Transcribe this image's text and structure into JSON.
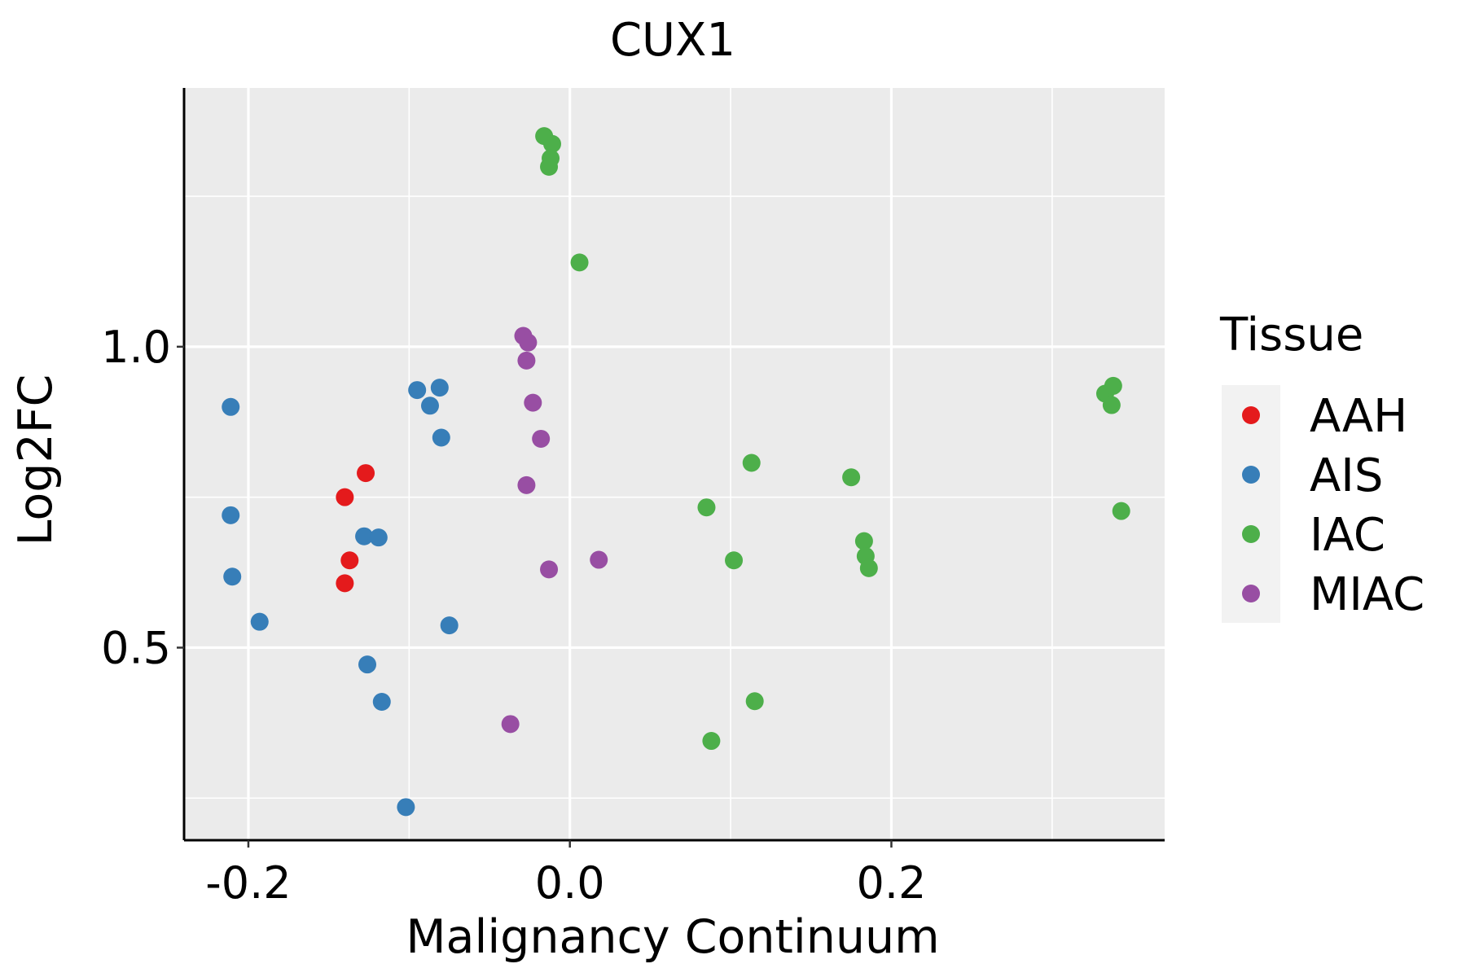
{
  "chart_data": {
    "type": "scatter",
    "title": "CUX1",
    "xlabel": "Malignancy Continuum",
    "ylabel": "Log2FC",
    "xlim": [
      -0.24,
      0.37
    ],
    "ylim": [
      0.18,
      1.43
    ],
    "x_ticks": [
      -0.2,
      0.0,
      0.2
    ],
    "x_tick_labels": [
      "-0.2",
      "0.0",
      "0.2"
    ],
    "y_ticks": [
      0.5,
      1.0
    ],
    "y_tick_labels": [
      "0.5",
      "1.0"
    ],
    "x_minor_grid": [
      -0.1,
      0.1,
      0.3
    ],
    "y_minor_grid": [
      0.25,
      0.75,
      1.25
    ],
    "grid": true,
    "panel_background": "#EBEBEB",
    "legend": {
      "title": "Tissue",
      "position": "right",
      "entries": [
        {
          "label": "AAH",
          "color": "#E41A1C"
        },
        {
          "label": "AIS",
          "color": "#377EB8"
        },
        {
          "label": "IAC",
          "color": "#4DAF4A"
        },
        {
          "label": "MIAC",
          "color": "#984EA3"
        }
      ]
    },
    "series": [
      {
        "name": "AAH",
        "color": "#E41A1C",
        "points": [
          {
            "x": -0.127,
            "y": 0.79
          },
          {
            "x": -0.14,
            "y": 0.75
          },
          {
            "x": -0.137,
            "y": 0.645
          },
          {
            "x": -0.14,
            "y": 0.607
          }
        ]
      },
      {
        "name": "AIS",
        "color": "#377EB8",
        "points": [
          {
            "x": -0.211,
            "y": 0.9
          },
          {
            "x": -0.211,
            "y": 0.72
          },
          {
            "x": -0.21,
            "y": 0.618
          },
          {
            "x": -0.193,
            "y": 0.543
          },
          {
            "x": -0.128,
            "y": 0.685
          },
          {
            "x": -0.119,
            "y": 0.683
          },
          {
            "x": -0.126,
            "y": 0.472
          },
          {
            "x": -0.117,
            "y": 0.41
          },
          {
            "x": -0.095,
            "y": 0.928
          },
          {
            "x": -0.081,
            "y": 0.932
          },
          {
            "x": -0.087,
            "y": 0.902
          },
          {
            "x": -0.08,
            "y": 0.849
          },
          {
            "x": -0.075,
            "y": 0.537
          },
          {
            "x": -0.102,
            "y": 0.235
          }
        ]
      },
      {
        "name": "IAC",
        "color": "#4DAF4A",
        "points": [
          {
            "x": -0.016,
            "y": 1.35
          },
          {
            "x": -0.011,
            "y": 1.337
          },
          {
            "x": -0.012,
            "y": 1.313
          },
          {
            "x": -0.013,
            "y": 1.299
          },
          {
            "x": 0.006,
            "y": 1.14
          },
          {
            "x": 0.085,
            "y": 0.733
          },
          {
            "x": 0.102,
            "y": 0.645
          },
          {
            "x": 0.113,
            "y": 0.807
          },
          {
            "x": 0.115,
            "y": 0.411
          },
          {
            "x": 0.088,
            "y": 0.345
          },
          {
            "x": 0.175,
            "y": 0.783
          },
          {
            "x": 0.183,
            "y": 0.677
          },
          {
            "x": 0.184,
            "y": 0.652
          },
          {
            "x": 0.186,
            "y": 0.632
          },
          {
            "x": 0.333,
            "y": 0.922
          },
          {
            "x": 0.338,
            "y": 0.935
          },
          {
            "x": 0.337,
            "y": 0.903
          },
          {
            "x": 0.343,
            "y": 0.727
          }
        ]
      },
      {
        "name": "MIAC",
        "color": "#984EA3",
        "points": [
          {
            "x": -0.029,
            "y": 1.018
          },
          {
            "x": -0.026,
            "y": 1.007
          },
          {
            "x": -0.027,
            "y": 0.977
          },
          {
            "x": -0.023,
            "y": 0.907
          },
          {
            "x": -0.018,
            "y": 0.847
          },
          {
            "x": -0.027,
            "y": 0.77
          },
          {
            "x": -0.013,
            "y": 0.63
          },
          {
            "x": 0.018,
            "y": 0.646
          },
          {
            "x": -0.037,
            "y": 0.373
          }
        ]
      }
    ]
  }
}
